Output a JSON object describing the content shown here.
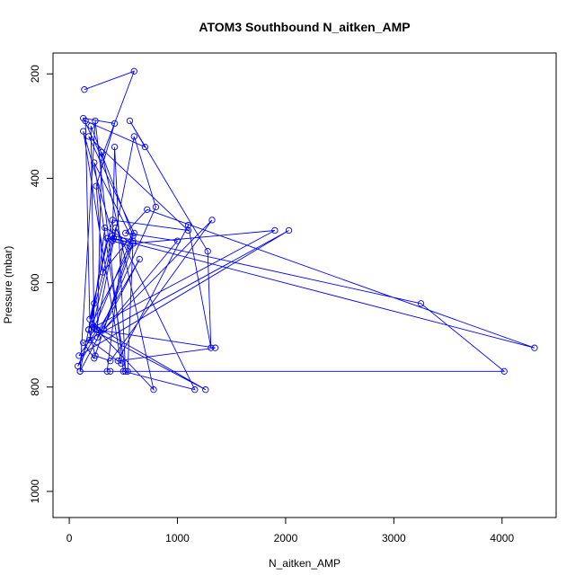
{
  "chart_data": {
    "type": "line",
    "title": "ATOM3 Southbound N_aitken_AMP",
    "xlabel": "N_aitken_AMP",
    "ylabel": "Pressure (mbar)",
    "xlim": [
      -150,
      4500
    ],
    "ylim": [
      1050,
      160
    ],
    "y_reversed": true,
    "x_ticks": [
      0,
      1000,
      2000,
      3000,
      4000
    ],
    "y_ticks": [
      200,
      400,
      600,
      800,
      1000
    ],
    "x_tick_labels": [
      "0",
      "1000",
      "2000",
      "3000",
      "4000"
    ],
    "y_tick_labels": [
      "200",
      "400",
      "600",
      "800",
      "1000"
    ],
    "series_color": "#0000ff",
    "marker": "open-circle",
    "grid": false,
    "series": [
      {
        "x": [
          140,
          600,
          300,
          130,
          420,
          250,
          310,
          600,
          180,
          1100,
          400,
          190,
          150,
          700,
          560,
          1280,
          1310,
          1100,
          450,
          1350,
          250,
          600,
          800,
          260,
          1000,
          520,
          720,
          4300,
          410,
          130,
          480,
          190,
          330,
          590,
          1900,
          230,
          200,
          590,
          80,
          650,
          100,
          4020,
          3250,
          400,
          180,
          240,
          380,
          1320,
          320,
          560,
          400,
          420,
          520,
          230,
          590,
          540,
          380,
          350,
          500,
          350,
          180,
          590,
          230,
          130,
          2030,
          90,
          260,
          300,
          780,
          210,
          1260,
          210,
          430,
          1160,
          500,
          240,
          100,
          230
        ],
        "y": [
          230,
          195,
          360,
          285,
          295,
          415,
          580,
          505,
          320,
          500,
          480,
          670,
          290,
          340,
          290,
          540,
          725,
          490,
          750,
          725,
          690,
          320,
          455,
          705,
          520,
          505,
          460,
          725,
          515,
          310,
          755,
          710,
          495,
          525,
          500,
          685,
          300,
          510,
          760,
          555,
          770,
          770,
          640,
          510,
          690,
          740,
          750,
          480,
          690,
          530,
          520,
          340,
          770,
          370,
          520,
          770,
          770,
          770,
          520,
          515,
          690,
          525,
          745,
          715,
          500,
          740,
          690,
          350,
          805,
          680,
          805,
          690,
          495,
          805,
          770,
          290,
          770,
          640
        ]
      }
    ]
  }
}
